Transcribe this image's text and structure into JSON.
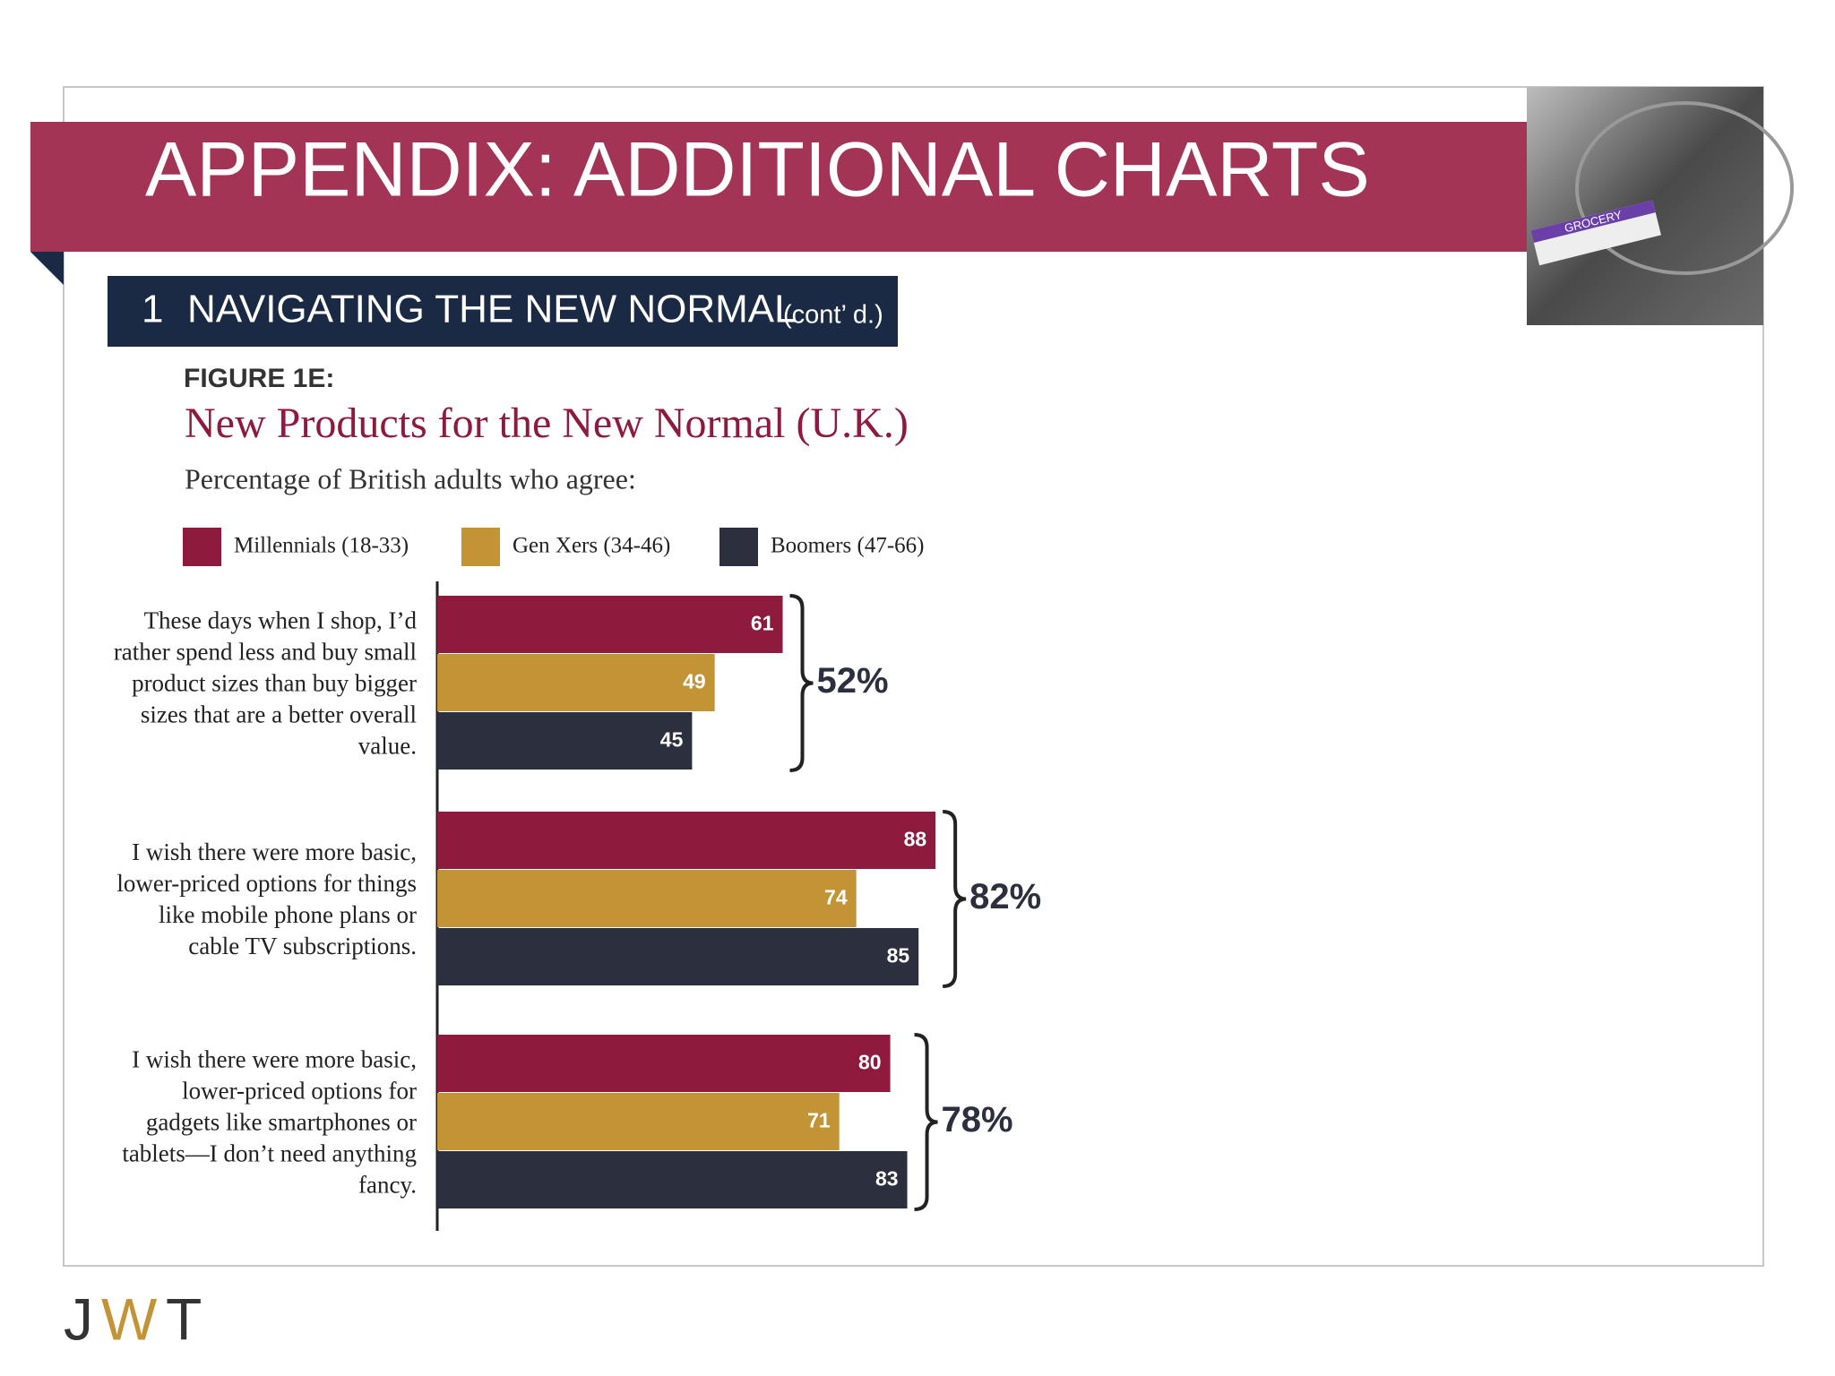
{
  "header": {
    "title": "APPENDIX: ADDITIONAL CHARTS",
    "photo_text": "GROCERY"
  },
  "section": {
    "number": "1",
    "title": "NAVIGATING THE NEW NORMAL",
    "note": "(cont’ d.)"
  },
  "figure_label": "FIGURE 1E:",
  "chart_data": {
    "type": "bar",
    "orientation": "horizontal",
    "title": "New Products for the New Normal (U.K.)",
    "subtitle": "Percentage of British adults who agree:",
    "categories": [
      "These days when I shop, I’d rather spend less and buy small product sizes than buy bigger sizes that are a better overall value.",
      "I wish there were more basic, lower-priced options for things like mobile phone plans or cable TV subscriptions.",
      "I wish there were more basic, lower-priced options for gadgets like smartphones or tablets—I don’t need anything fancy."
    ],
    "series": [
      {
        "name": "Millennials (18-33)",
        "color": "#8e1a3e",
        "values": [
          61,
          88,
          80
        ]
      },
      {
        "name": "Gen Xers (34-46)",
        "color": "#c29435",
        "values": [
          49,
          74,
          71
        ]
      },
      {
        "name": "Boomers (47-66)",
        "color": "#2c2f3e",
        "values": [
          45,
          85,
          83
        ]
      }
    ],
    "group_totals": [
      52,
      82,
      78
    ],
    "group_total_labels": [
      "52%",
      "82%",
      "78%"
    ],
    "xlim": [
      0,
      100
    ]
  },
  "logo": [
    "J",
    "W",
    "T"
  ]
}
